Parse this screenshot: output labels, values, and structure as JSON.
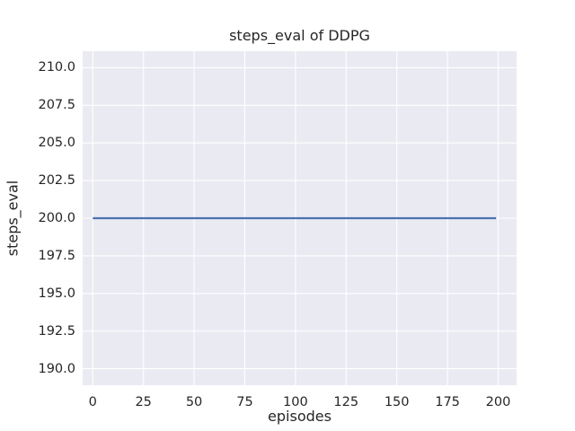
{
  "figure": {
    "background": "#ffffff"
  },
  "chart_data": {
    "type": "line",
    "title": "steps_eval of DDPG",
    "xlabel": "episodes",
    "ylabel": "steps_eval",
    "x_ticks": [
      0,
      25,
      50,
      75,
      100,
      125,
      150,
      175,
      200
    ],
    "x_tick_labels": [
      "0",
      "25",
      "50",
      "75",
      "100",
      "125",
      "150",
      "175",
      "200"
    ],
    "y_ticks": [
      190.0,
      192.5,
      195.0,
      197.5,
      200.0,
      202.5,
      205.0,
      207.5,
      210.0
    ],
    "y_tick_labels": [
      "190.0",
      "192.5",
      "195.0",
      "197.5",
      "200.0",
      "202.5",
      "205.0",
      "207.5",
      "210.0"
    ],
    "xlim": [
      -5,
      209.1
    ],
    "ylim": [
      188.9,
      211.1
    ],
    "grid": true,
    "legend": "none",
    "plot_background": "#eaeaf2",
    "grid_color": "#ffffff",
    "text_color": "#262626",
    "series": [
      {
        "x": [
          0,
          199
        ],
        "y": [
          200,
          200
        ],
        "color": "#4c72b0",
        "line_width": 2.2,
        "description": "constant steps_eval value of 200 for all evaluated episodes 0-199"
      }
    ]
  }
}
